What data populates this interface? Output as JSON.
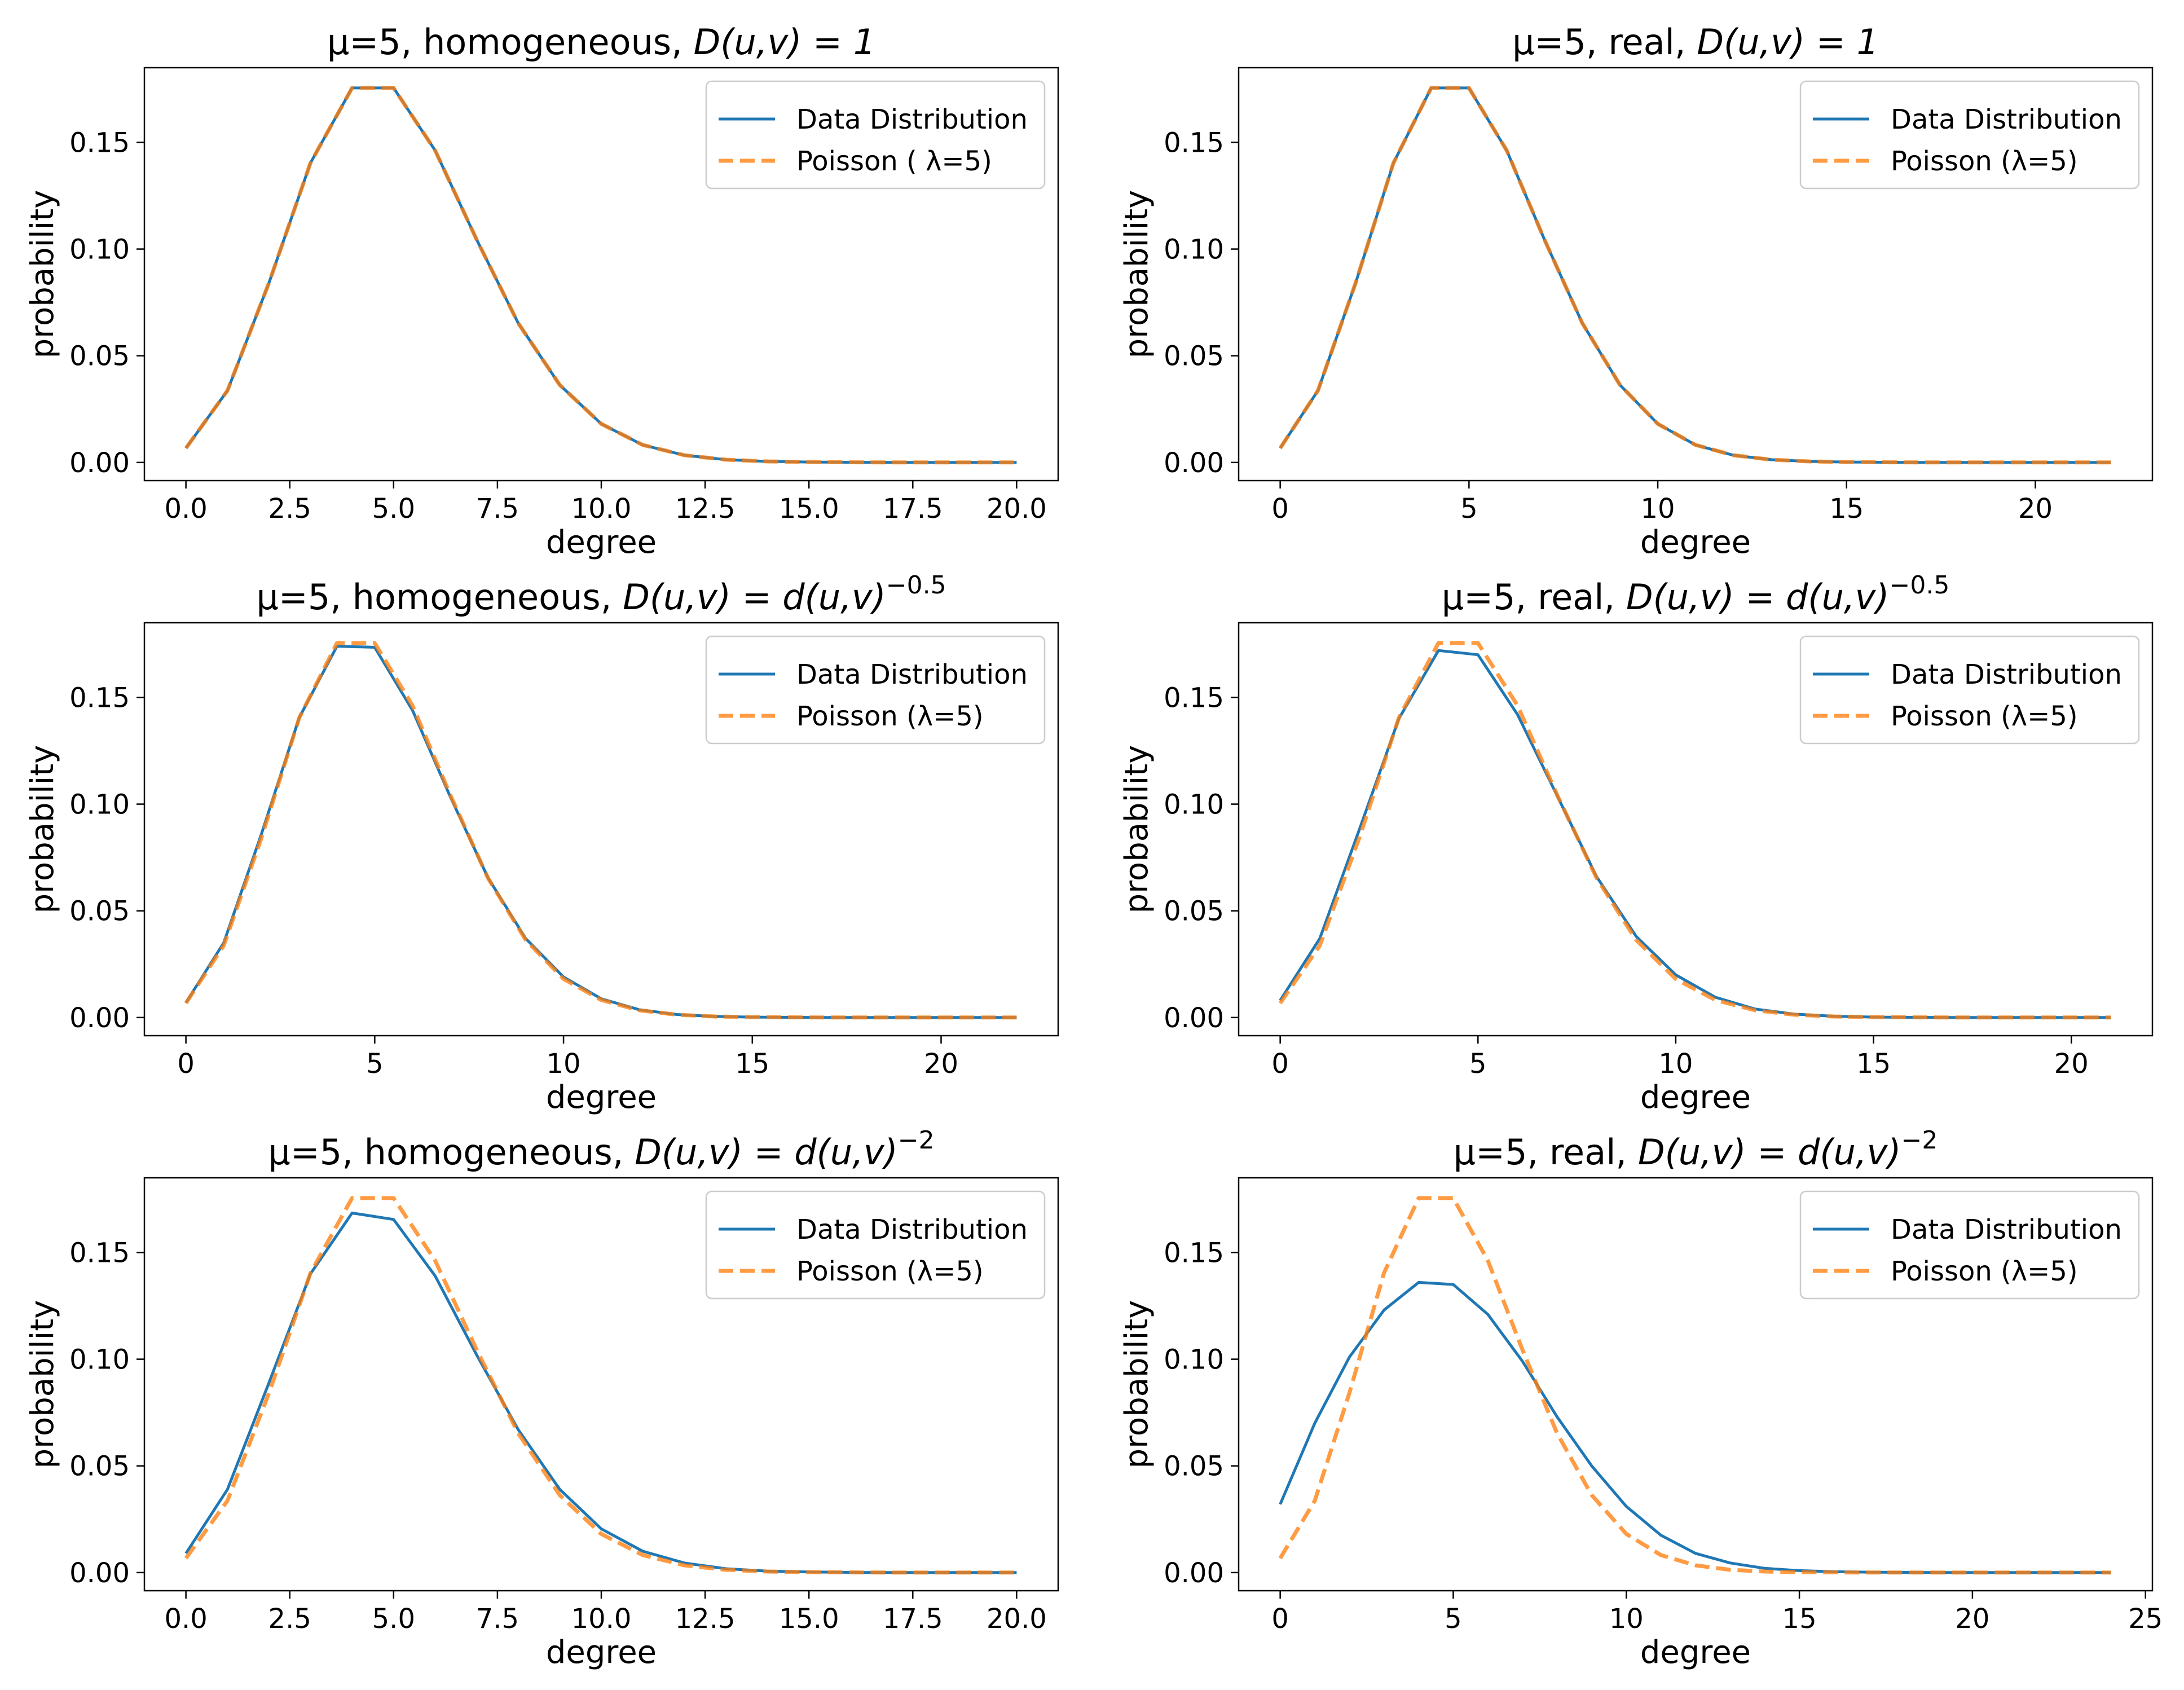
{
  "figure": {
    "colors": {
      "data": "#1f77b4",
      "poisson": "#ff7f0e"
    }
  },
  "chart_data": [
    {
      "type": "line",
      "title": "μ=5, homogeneous, D(u,v) = 1",
      "title_parts": {
        "prefix": "μ=5, homogeneous, ",
        "formula": "D(u,v) = 1",
        "exponent": ""
      },
      "xlabel": "degree",
      "ylabel": "probability",
      "xlim": [
        -1,
        21
      ],
      "ylim": [
        -0.0085,
        0.185
      ],
      "xticks": [
        0,
        2.5,
        5,
        7.5,
        10,
        12.5,
        15,
        17.5,
        20
      ],
      "xtick_labels": [
        "0.0",
        "2.5",
        "5.0",
        "7.5",
        "10.0",
        "12.5",
        "15.0",
        "17.5",
        "20.0"
      ],
      "yticks": [
        0,
        0.05,
        0.1,
        0.15
      ],
      "ytick_labels": [
        "0.00",
        "0.05",
        "0.10",
        "0.15"
      ],
      "legend_position": "top-right",
      "series": [
        {
          "name": "Data Distribution",
          "style": "solid",
          "x": [
            0,
            1,
            2,
            3,
            4,
            5,
            6,
            7,
            8,
            9,
            10,
            11,
            12,
            13,
            14,
            15,
            16,
            17,
            18,
            19,
            20
          ],
          "values": [
            0.0067,
            0.0337,
            0.0842,
            0.1404,
            0.1755,
            0.1755,
            0.1462,
            0.1044,
            0.0653,
            0.0363,
            0.0181,
            0.0082,
            0.0034,
            0.0013,
            0.0005,
            0.0002,
            0.0001,
            0,
            0,
            0,
            0
          ]
        },
        {
          "name": "Poisson ( λ=5)",
          "style": "dashed",
          "x": [
            0,
            1,
            2,
            3,
            4,
            5,
            6,
            7,
            8,
            9,
            10,
            11,
            12,
            13,
            14,
            15,
            16,
            17,
            18,
            19,
            20
          ],
          "values": [
            0.0067,
            0.0337,
            0.0842,
            0.1404,
            0.1755,
            0.1755,
            0.1462,
            0.1044,
            0.0653,
            0.0363,
            0.0181,
            0.0082,
            0.0034,
            0.0013,
            0.0005,
            0.0002,
            0.0001,
            0,
            0,
            0,
            0
          ]
        }
      ]
    },
    {
      "type": "line",
      "title": "μ=5, real, D(u,v) = 1",
      "title_parts": {
        "prefix": "μ=5, real, ",
        "formula": "D(u,v) = 1",
        "exponent": ""
      },
      "xlabel": "degree",
      "ylabel": "probability",
      "xlim": [
        -1.1,
        23.1
      ],
      "ylim": [
        -0.0085,
        0.185
      ],
      "xticks": [
        0,
        5,
        10,
        15,
        20
      ],
      "xtick_labels": [
        "0",
        "5",
        "10",
        "15",
        "20"
      ],
      "yticks": [
        0,
        0.05,
        0.1,
        0.15
      ],
      "ytick_labels": [
        "0.00",
        "0.05",
        "0.10",
        "0.15"
      ],
      "legend_position": "top-right",
      "series": [
        {
          "name": "Data Distribution",
          "style": "solid",
          "x": [
            0,
            1,
            2,
            3,
            4,
            5,
            6,
            7,
            8,
            9,
            10,
            11,
            12,
            13,
            14,
            15,
            16,
            17,
            18,
            19,
            20,
            21,
            22
          ],
          "values": [
            0.0067,
            0.0337,
            0.0842,
            0.1404,
            0.1755,
            0.1755,
            0.1462,
            0.1044,
            0.0653,
            0.0363,
            0.0181,
            0.0082,
            0.0034,
            0.0013,
            0.0005,
            0.0002,
            0.0001,
            0,
            0,
            0,
            0,
            0,
            0
          ]
        },
        {
          "name": "Poisson (λ=5)",
          "style": "dashed",
          "x": [
            0,
            1,
            2,
            3,
            4,
            5,
            6,
            7,
            8,
            9,
            10,
            11,
            12,
            13,
            14,
            15,
            16,
            17,
            18,
            19,
            20,
            21,
            22
          ],
          "values": [
            0.0067,
            0.0337,
            0.0842,
            0.1404,
            0.1755,
            0.1755,
            0.1462,
            0.1044,
            0.0653,
            0.0363,
            0.0181,
            0.0082,
            0.0034,
            0.0013,
            0.0005,
            0.0002,
            0.0001,
            0,
            0,
            0,
            0,
            0,
            0
          ]
        }
      ]
    },
    {
      "type": "line",
      "title": "μ=5, homogeneous, D(u,v) = d(u,v)^−0.5",
      "title_parts": {
        "prefix": "μ=5, homogeneous, ",
        "formula": "D(u,v) = d(u,v)",
        "exponent": "−0.5"
      },
      "xlabel": "degree",
      "ylabel": "probability",
      "xlim": [
        -1.1,
        23.1
      ],
      "ylim": [
        -0.0085,
        0.185
      ],
      "xticks": [
        0,
        5,
        10,
        15,
        20
      ],
      "xtick_labels": [
        "0",
        "5",
        "10",
        "15",
        "20"
      ],
      "yticks": [
        0,
        0.05,
        0.1,
        0.15
      ],
      "ytick_labels": [
        "0.00",
        "0.05",
        "0.10",
        "0.15"
      ],
      "legend_position": "top-right",
      "series": [
        {
          "name": "Data Distribution",
          "style": "solid",
          "x": [
            0,
            1,
            2,
            3,
            4,
            5,
            6,
            7,
            8,
            9,
            10,
            11,
            12,
            13,
            14,
            15,
            16,
            17,
            18,
            19,
            20,
            21,
            22
          ],
          "values": [
            0.007,
            0.035,
            0.086,
            0.1405,
            0.174,
            0.1735,
            0.144,
            0.1035,
            0.0655,
            0.037,
            0.019,
            0.0088,
            0.0037,
            0.0014,
            0.0005,
            0.0002,
            0.0001,
            0,
            0,
            0,
            0,
            0,
            0
          ]
        },
        {
          "name": "Poisson (λ=5)",
          "style": "dashed",
          "x": [
            0,
            1,
            2,
            3,
            4,
            5,
            6,
            7,
            8,
            9,
            10,
            11,
            12,
            13,
            14,
            15,
            16,
            17,
            18,
            19,
            20,
            21,
            22
          ],
          "values": [
            0.0067,
            0.0337,
            0.0842,
            0.1404,
            0.1755,
            0.1755,
            0.1462,
            0.1044,
            0.0653,
            0.0363,
            0.0181,
            0.0082,
            0.0034,
            0.0013,
            0.0005,
            0.0002,
            0.0001,
            0,
            0,
            0,
            0,
            0,
            0
          ]
        }
      ]
    },
    {
      "type": "line",
      "title": "μ=5, real, D(u,v) = d(u,v)^−0.5",
      "title_parts": {
        "prefix": "μ=5, real, ",
        "formula": "D(u,v) = d(u,v)",
        "exponent": "−0.5"
      },
      "xlabel": "degree",
      "ylabel": "probability",
      "xlim": [
        -1.05,
        22.05
      ],
      "ylim": [
        -0.0085,
        0.185
      ],
      "xticks": [
        0,
        5,
        10,
        15,
        20
      ],
      "xtick_labels": [
        "0",
        "5",
        "10",
        "15",
        "20"
      ],
      "yticks": [
        0,
        0.05,
        0.1,
        0.15
      ],
      "ytick_labels": [
        "0.00",
        "0.05",
        "0.10",
        "0.15"
      ],
      "legend_position": "top-right",
      "series": [
        {
          "name": "Data Distribution",
          "style": "solid",
          "x": [
            0,
            1,
            2,
            3,
            4,
            5,
            6,
            7,
            8,
            9,
            10,
            11,
            12,
            13,
            14,
            15,
            16,
            17,
            18,
            19,
            20,
            21
          ],
          "values": [
            0.008,
            0.037,
            0.088,
            0.14,
            0.172,
            0.17,
            0.142,
            0.104,
            0.066,
            0.038,
            0.02,
            0.0095,
            0.004,
            0.0016,
            0.0006,
            0.0002,
            0.0001,
            0,
            0,
            0,
            0,
            0
          ]
        },
        {
          "name": "Poisson (λ=5)",
          "style": "dashed",
          "x": [
            0,
            1,
            2,
            3,
            4,
            5,
            6,
            7,
            8,
            9,
            10,
            11,
            12,
            13,
            14,
            15,
            16,
            17,
            18,
            19,
            20,
            21
          ],
          "values": [
            0.0067,
            0.0337,
            0.0842,
            0.1404,
            0.1755,
            0.1755,
            0.1462,
            0.1044,
            0.0653,
            0.0363,
            0.0181,
            0.0082,
            0.0034,
            0.0013,
            0.0005,
            0.0002,
            0.0001,
            0,
            0,
            0,
            0,
            0
          ]
        }
      ]
    },
    {
      "type": "line",
      "title": "μ=5, homogeneous, D(u,v) = d(u,v)^−2",
      "title_parts": {
        "prefix": "μ=5, homogeneous, ",
        "formula": "D(u,v) = d(u,v)",
        "exponent": "−2"
      },
      "xlabel": "degree",
      "ylabel": "probability",
      "xlim": [
        -1,
        21
      ],
      "ylim": [
        -0.0085,
        0.185
      ],
      "xticks": [
        0,
        2.5,
        5,
        7.5,
        10,
        12.5,
        15,
        17.5,
        20
      ],
      "xtick_labels": [
        "0.0",
        "2.5",
        "5.0",
        "7.5",
        "10.0",
        "12.5",
        "15.0",
        "17.5",
        "20.0"
      ],
      "yticks": [
        0,
        0.05,
        0.1,
        0.15
      ],
      "ytick_labels": [
        "0.00",
        "0.05",
        "0.10",
        "0.15"
      ],
      "legend_position": "top-right",
      "series": [
        {
          "name": "Data Distribution",
          "style": "solid",
          "x": [
            0,
            1,
            2,
            3,
            4,
            5,
            6,
            7,
            8,
            9,
            10,
            11,
            12,
            13,
            14,
            15,
            16,
            17,
            18,
            19,
            20
          ],
          "values": [
            0.009,
            0.039,
            0.089,
            0.14,
            0.1685,
            0.1655,
            0.139,
            0.102,
            0.067,
            0.039,
            0.0205,
            0.01,
            0.0045,
            0.0018,
            0.0007,
            0.0003,
            0.0001,
            0,
            0,
            0,
            0
          ]
        },
        {
          "name": "Poisson (λ=5)",
          "style": "dashed",
          "x": [
            0,
            1,
            2,
            3,
            4,
            5,
            6,
            7,
            8,
            9,
            10,
            11,
            12,
            13,
            14,
            15,
            16,
            17,
            18,
            19,
            20
          ],
          "values": [
            0.0067,
            0.0337,
            0.0842,
            0.1404,
            0.1755,
            0.1755,
            0.1462,
            0.1044,
            0.0653,
            0.0363,
            0.0181,
            0.0082,
            0.0034,
            0.0013,
            0.0005,
            0.0002,
            0.0001,
            0,
            0,
            0,
            0
          ]
        }
      ]
    },
    {
      "type": "line",
      "title": "μ=5, real, D(u,v) = d(u,v)^−2",
      "title_parts": {
        "prefix": "μ=5, real, ",
        "formula": "D(u,v) = d(u,v)",
        "exponent": "−2"
      },
      "xlabel": "degree",
      "ylabel": "probability",
      "xlim": [
        -1.2,
        25.2
      ],
      "ylim": [
        -0.0085,
        0.185
      ],
      "xticks": [
        0,
        5,
        10,
        15,
        20,
        25
      ],
      "xtick_labels": [
        "0",
        "5",
        "10",
        "15",
        "20",
        "25"
      ],
      "yticks": [
        0,
        0.05,
        0.1,
        0.15
      ],
      "ytick_labels": [
        "0.00",
        "0.05",
        "0.10",
        "0.15"
      ],
      "legend_position": "top-right",
      "series": [
        {
          "name": "Data Distribution",
          "style": "solid",
          "x": [
            0,
            1,
            2,
            3,
            4,
            5,
            6,
            7,
            8,
            9,
            10,
            11,
            12,
            13,
            14,
            15,
            16,
            17,
            18,
            19,
            20,
            21,
            22,
            23,
            24
          ],
          "values": [
            0.032,
            0.07,
            0.101,
            0.123,
            0.136,
            0.135,
            0.121,
            0.099,
            0.073,
            0.05,
            0.031,
            0.0175,
            0.009,
            0.0045,
            0.002,
            0.0009,
            0.0004,
            0.0002,
            0.0001,
            0,
            0,
            0,
            0,
            0,
            0
          ]
        },
        {
          "name": "Poisson (λ=5)",
          "style": "dashed",
          "x": [
            0,
            1,
            2,
            3,
            4,
            5,
            6,
            7,
            8,
            9,
            10,
            11,
            12,
            13,
            14,
            15,
            16,
            17,
            18,
            19,
            20,
            21,
            22,
            23,
            24
          ],
          "values": [
            0.0067,
            0.0337,
            0.0842,
            0.1404,
            0.1755,
            0.1755,
            0.1462,
            0.1044,
            0.0653,
            0.0363,
            0.0181,
            0.0082,
            0.0034,
            0.0013,
            0.0005,
            0.0002,
            0.0001,
            0,
            0,
            0,
            0,
            0,
            0,
            0,
            0
          ]
        }
      ]
    }
  ]
}
